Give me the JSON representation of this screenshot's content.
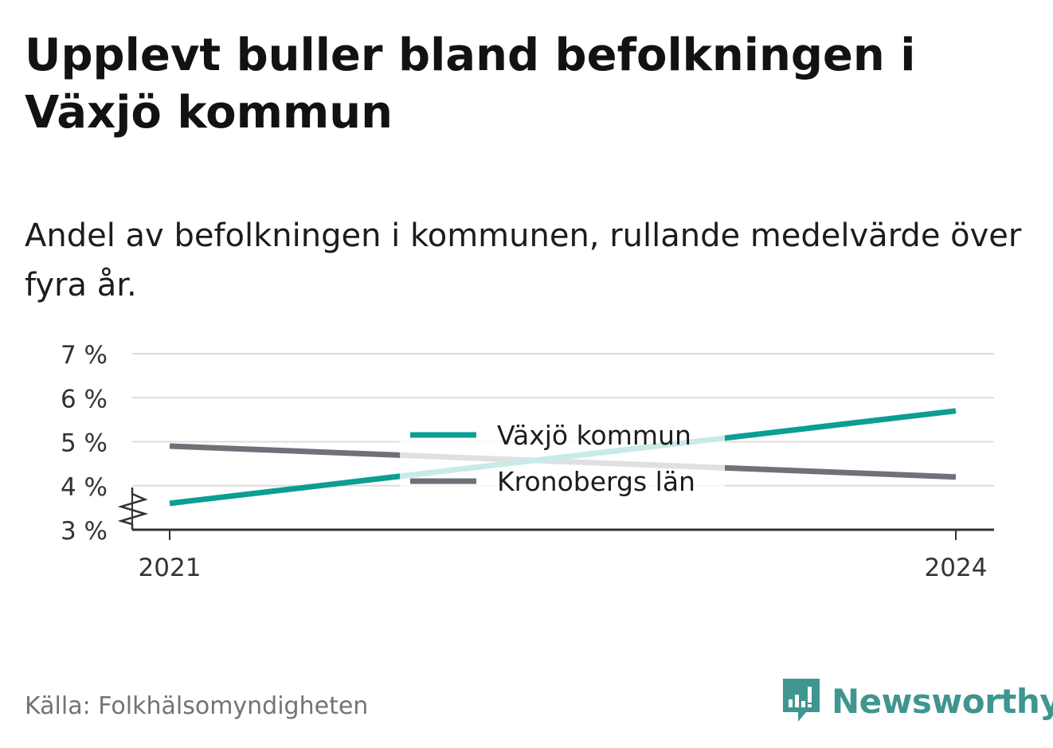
{
  "title": "Upplevt buller bland befolkningen i Växjö kommun",
  "subtitle": "Andel av befolkningen i kommunen, rullande medelvärde över fyra år.",
  "source": "Källa: Folkhälsomyndigheten",
  "brand": "Newsworthy",
  "colors": {
    "vaxjo": "#0b9e94",
    "kronoberg": "#717079",
    "grid": "#dddddd",
    "axis": "#333333",
    "brand": "#3f958f"
  },
  "chart_data": {
    "type": "line",
    "title": "Upplevt buller bland befolkningen i Växjö kommun",
    "x": [
      2021,
      2024
    ],
    "x_tick_labels": [
      "2021",
      "2024"
    ],
    "y_ticks": [
      3,
      4,
      5,
      6,
      7
    ],
    "y_tick_labels": [
      "3 %",
      "4 %",
      "5 %",
      "6 %",
      "7 %"
    ],
    "ylim": [
      3,
      7
    ],
    "y_axis_break": true,
    "grid": true,
    "legend_position": "center",
    "series": [
      {
        "name": "Växjö kommun",
        "color": "#0b9e94",
        "values": [
          3.6,
          5.7
        ]
      },
      {
        "name": "Kronobergs län",
        "color": "#717079",
        "values": [
          4.9,
          4.2
        ]
      }
    ]
  }
}
